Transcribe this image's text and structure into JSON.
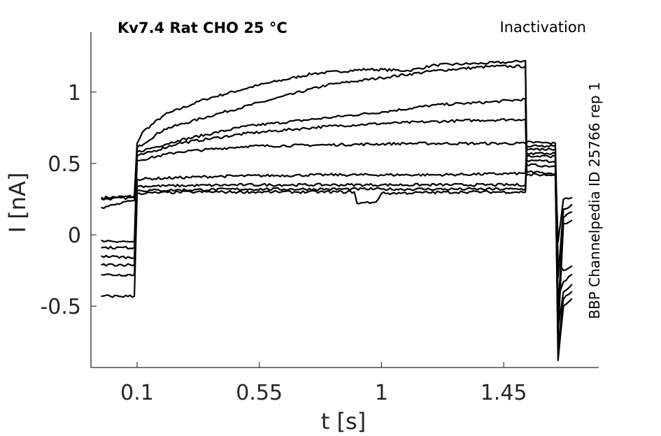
{
  "chart_data": {
    "type": "line",
    "title": "Kv7.4  Rat  CHO  25 °C",
    "protocol": "Inactivation",
    "source": "BBP Channelpedia ID 25766 rep 1",
    "xlabel": "t [s]",
    "ylabel": "I [nA]",
    "xlim": [
      -0.07,
      1.8
    ],
    "ylim": [
      -0.93,
      1.42
    ],
    "xticks": [
      0.1,
      0.55,
      1,
      1.45
    ],
    "xtick_labels": [
      "0.1",
      "0.55",
      "1",
      "1.45"
    ],
    "yticks": [
      -0.5,
      0,
      0.5,
      1
    ],
    "ytick_labels": [
      "-0.5",
      "0",
      "0.5",
      "1"
    ],
    "grid": false,
    "legend": "none",
    "line_color": "#000000",
    "series": [
      {
        "values": [
          [
            -0.03,
            0.26
          ],
          [
            0.09,
            0.27
          ],
          [
            0.1,
            0.64
          ],
          [
            0.12,
            0.72
          ],
          [
            0.2,
            0.84
          ],
          [
            0.35,
            0.95
          ],
          [
            0.55,
            1.05
          ],
          [
            0.75,
            1.13
          ],
          [
            0.95,
            1.16
          ],
          [
            1.1,
            1.15
          ],
          [
            1.2,
            1.19
          ],
          [
            1.35,
            1.2
          ],
          [
            1.48,
            1.21
          ],
          [
            1.53,
            1.22
          ],
          [
            1.535,
            0.52
          ],
          [
            1.6,
            0.52
          ],
          [
            1.64,
            0.51
          ],
          [
            1.65,
            -0.05
          ],
          [
            1.67,
            0.25
          ],
          [
            1.7,
            0.26
          ]
        ]
      },
      {
        "values": [
          [
            -0.03,
            0.25
          ],
          [
            0.09,
            0.26
          ],
          [
            0.1,
            0.61
          ],
          [
            0.2,
            0.74
          ],
          [
            0.4,
            0.85
          ],
          [
            0.6,
            0.95
          ],
          [
            0.8,
            1.05
          ],
          [
            1.0,
            1.1
          ],
          [
            1.2,
            1.15
          ],
          [
            1.4,
            1.18
          ],
          [
            1.53,
            1.18
          ],
          [
            1.535,
            0.49
          ],
          [
            1.64,
            0.48
          ],
          [
            1.65,
            -0.3
          ],
          [
            1.67,
            0.18
          ],
          [
            1.7,
            0.21
          ]
        ]
      },
      {
        "values": [
          [
            -0.03,
            0.19
          ],
          [
            0.09,
            0.24
          ],
          [
            0.1,
            0.58
          ],
          [
            0.25,
            0.66
          ],
          [
            0.5,
            0.76
          ],
          [
            0.8,
            0.82
          ],
          [
            1.0,
            0.86
          ],
          [
            1.2,
            0.91
          ],
          [
            1.4,
            0.93
          ],
          [
            1.53,
            0.95
          ],
          [
            1.535,
            0.44
          ],
          [
            1.64,
            0.43
          ],
          [
            1.65,
            -0.55
          ],
          [
            1.67,
            0.12
          ],
          [
            1.7,
            0.16
          ]
        ]
      },
      {
        "values": [
          [
            -0.03,
            -0.04
          ],
          [
            0.09,
            -0.05
          ],
          [
            0.1,
            0.55
          ],
          [
            0.25,
            0.64
          ],
          [
            0.5,
            0.71
          ],
          [
            0.8,
            0.76
          ],
          [
            1.0,
            0.78
          ],
          [
            1.3,
            0.8
          ],
          [
            1.53,
            0.81
          ],
          [
            1.535,
            0.42
          ],
          [
            1.64,
            0.42
          ],
          [
            1.65,
            -0.7
          ],
          [
            1.67,
            0.08
          ],
          [
            1.7,
            0.1
          ]
        ]
      },
      {
        "values": [
          [
            -0.03,
            -0.09
          ],
          [
            0.09,
            -0.09
          ],
          [
            0.1,
            0.52
          ],
          [
            0.25,
            0.58
          ],
          [
            0.5,
            0.62
          ],
          [
            0.8,
            0.63
          ],
          [
            1.1,
            0.64
          ],
          [
            1.53,
            0.64
          ],
          [
            1.535,
            0.65
          ],
          [
            1.64,
            0.64
          ],
          [
            1.65,
            -0.2
          ],
          [
            1.67,
            -0.25
          ],
          [
            1.7,
            -0.22
          ]
        ]
      },
      {
        "values": [
          [
            -0.03,
            -0.15
          ],
          [
            0.09,
            -0.16
          ],
          [
            0.1,
            0.39
          ],
          [
            0.4,
            0.41
          ],
          [
            0.8,
            0.42
          ],
          [
            1.2,
            0.42
          ],
          [
            1.53,
            0.43
          ],
          [
            1.535,
            0.62
          ],
          [
            1.64,
            0.62
          ],
          [
            1.65,
            -0.45
          ],
          [
            1.67,
            -0.33
          ],
          [
            1.7,
            -0.28
          ]
        ]
      },
      {
        "values": [
          [
            -0.03,
            -0.21
          ],
          [
            0.09,
            -0.21
          ],
          [
            0.1,
            0.34
          ],
          [
            0.5,
            0.35
          ],
          [
            1.0,
            0.35
          ],
          [
            1.53,
            0.35
          ],
          [
            1.535,
            0.6
          ],
          [
            1.64,
            0.6
          ],
          [
            1.65,
            -0.65
          ],
          [
            1.67,
            -0.4
          ],
          [
            1.7,
            -0.35
          ]
        ]
      },
      {
        "values": [
          [
            -0.03,
            -0.28
          ],
          [
            0.09,
            -0.28
          ],
          [
            0.1,
            0.31
          ],
          [
            0.5,
            0.32
          ],
          [
            1.0,
            0.32
          ],
          [
            1.53,
            0.32
          ],
          [
            1.535,
            0.57
          ],
          [
            1.64,
            0.57
          ],
          [
            1.65,
            -0.8
          ],
          [
            1.67,
            -0.45
          ],
          [
            1.7,
            -0.4
          ]
        ]
      },
      {
        "values": [
          [
            -0.03,
            -0.43
          ],
          [
            0.09,
            -0.43
          ],
          [
            0.1,
            0.29
          ],
          [
            0.3,
            0.3
          ],
          [
            0.6,
            0.3
          ],
          [
            0.9,
            0.3
          ],
          [
            0.91,
            0.22
          ],
          [
            0.98,
            0.23
          ],
          [
            1.0,
            0.29
          ],
          [
            1.3,
            0.3
          ],
          [
            1.53,
            0.3
          ],
          [
            1.535,
            0.55
          ],
          [
            1.64,
            0.55
          ],
          [
            1.65,
            -0.88
          ],
          [
            1.67,
            -0.5
          ],
          [
            1.7,
            -0.45
          ]
        ]
      }
    ]
  }
}
